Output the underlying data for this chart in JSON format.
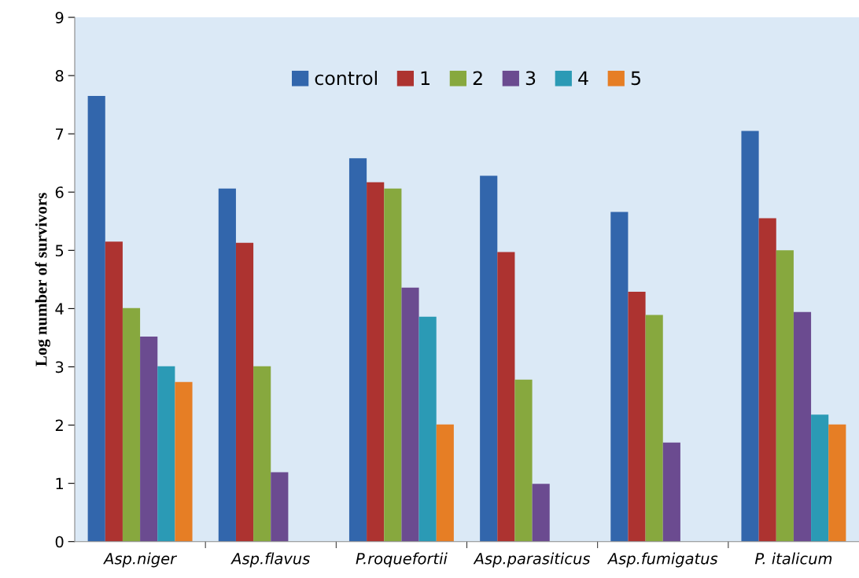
{
  "chart_data": {
    "type": "bar",
    "ylabel": "Log number of survivors",
    "categories": [
      "Asp.niger",
      "Asp.flavus",
      "P.roquefortii",
      "Asp.parasiticus",
      "Asp.fumigatus",
      "P. italicum"
    ],
    "series": [
      {
        "name": "control",
        "color": "#3266ac",
        "values": [
          7.65,
          6.06,
          6.58,
          6.28,
          5.66,
          7.05
        ]
      },
      {
        "name": "1",
        "color": "#ad3330",
        "values": [
          5.15,
          5.13,
          6.17,
          4.97,
          4.29,
          5.55
        ]
      },
      {
        "name": "2",
        "color": "#87a83e",
        "values": [
          4.01,
          3.01,
          6.06,
          2.78,
          3.89,
          5.0
        ]
      },
      {
        "name": "3",
        "color": "#6b4b90",
        "values": [
          3.52,
          1.19,
          4.36,
          0.99,
          1.7,
          3.94
        ]
      },
      {
        "name": "4",
        "color": "#2b9ab5",
        "values": [
          3.01,
          null,
          3.86,
          null,
          null,
          2.18
        ]
      },
      {
        "name": "5",
        "color": "#e67e25",
        "values": [
          2.74,
          null,
          2.01,
          null,
          null,
          2.01
        ]
      }
    ],
    "ylim": [
      0,
      9
    ],
    "yticks": [
      0,
      1,
      2,
      3,
      4,
      5,
      6,
      7,
      8,
      9
    ],
    "grid": false,
    "legend": "top"
  }
}
